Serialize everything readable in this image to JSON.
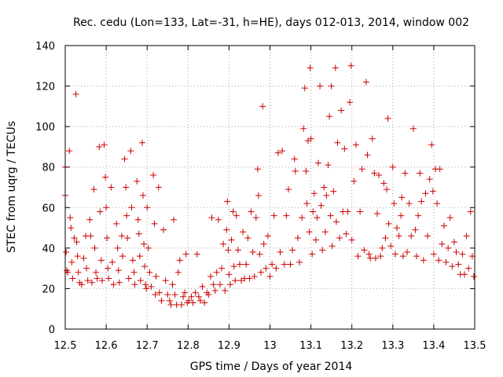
{
  "chart_data": {
    "type": "scatter",
    "title": "Rec. cedu (Lon=133, Lat=-31, h=HE), days 012-013, 2014, window 002",
    "xlabel": "GPS time / Days of year 2014",
    "ylabel": "STEC from uqrg / TECUs",
    "xlim": [
      12.5,
      13.5
    ],
    "ylim": [
      0,
      140
    ],
    "x_ticks": [
      12.5,
      12.6,
      12.7,
      12.8,
      12.9,
      13,
      13.1,
      13.2,
      13.3,
      13.4,
      13.5
    ],
    "x_tick_labels": [
      "12.5",
      "12.6",
      "12.7",
      "12.8",
      "12.9",
      "13",
      "13.1",
      "13.2",
      "13.3",
      "13.4",
      "13.5"
    ],
    "y_ticks": [
      0,
      20,
      40,
      60,
      80,
      100,
      120,
      140
    ],
    "y_tick_labels": [
      "0",
      "20",
      "40",
      "60",
      "80",
      "100",
      "120",
      "140"
    ],
    "grid": true,
    "marker": "plus",
    "color": "#cc0000",
    "series": [
      {
        "points": [
          [
            12.5,
            66
          ],
          [
            12.5,
            80
          ],
          [
            12.502,
            38
          ],
          [
            12.504,
            29
          ],
          [
            12.506,
            28
          ],
          [
            12.51,
            88
          ],
          [
            12.512,
            55
          ],
          [
            12.514,
            50
          ],
          [
            12.516,
            33
          ],
          [
            12.518,
            25
          ],
          [
            12.522,
            45
          ],
          [
            12.526,
            116
          ],
          [
            12.528,
            43
          ],
          [
            12.53,
            36
          ],
          [
            12.532,
            28
          ],
          [
            12.535,
            23
          ],
          [
            12.54,
            22
          ],
          [
            12.545,
            35
          ],
          [
            12.55,
            46
          ],
          [
            12.552,
            30
          ],
          [
            12.555,
            24
          ],
          [
            12.56,
            54
          ],
          [
            12.562,
            46
          ],
          [
            12.565,
            23
          ],
          [
            12.57,
            69
          ],
          [
            12.572,
            40
          ],
          [
            12.575,
            28
          ],
          [
            12.578,
            25
          ],
          [
            12.583,
            90
          ],
          [
            12.585,
            58
          ],
          [
            12.588,
            34
          ],
          [
            12.59,
            24
          ],
          [
            12.595,
            91
          ],
          [
            12.598,
            75
          ],
          [
            12.6,
            60
          ],
          [
            12.602,
            45
          ],
          [
            12.604,
            30
          ],
          [
            12.606,
            25
          ],
          [
            12.612,
            70
          ],
          [
            12.615,
            33
          ],
          [
            12.618,
            22
          ],
          [
            12.625,
            52
          ],
          [
            12.628,
            40
          ],
          [
            12.63,
            29
          ],
          [
            12.632,
            23
          ],
          [
            12.638,
            46
          ],
          [
            12.64,
            36
          ],
          [
            12.645,
            84
          ],
          [
            12.648,
            70
          ],
          [
            12.65,
            56
          ],
          [
            12.652,
            45
          ],
          [
            12.655,
            25
          ],
          [
            12.66,
            88
          ],
          [
            12.662,
            60
          ],
          [
            12.665,
            34
          ],
          [
            12.668,
            28
          ],
          [
            12.67,
            22
          ],
          [
            12.675,
            73
          ],
          [
            12.678,
            54
          ],
          [
            12.68,
            47
          ],
          [
            12.682,
            36
          ],
          [
            12.684,
            24
          ],
          [
            12.688,
            92
          ],
          [
            12.69,
            66
          ],
          [
            12.692,
            42
          ],
          [
            12.694,
            31
          ],
          [
            12.696,
            22
          ],
          [
            12.698,
            20
          ],
          [
            12.7,
            60
          ],
          [
            12.703,
            40
          ],
          [
            12.706,
            28
          ],
          [
            12.71,
            21
          ],
          [
            12.715,
            76
          ],
          [
            12.718,
            52
          ],
          [
            12.72,
            17
          ],
          [
            12.722,
            26
          ],
          [
            12.728,
            70
          ],
          [
            12.73,
            18
          ],
          [
            12.735,
            14
          ],
          [
            12.74,
            49
          ],
          [
            12.745,
            24
          ],
          [
            12.75,
            17
          ],
          [
            12.755,
            14
          ],
          [
            12.758,
            12
          ],
          [
            12.762,
            22
          ],
          [
            12.765,
            54
          ],
          [
            12.768,
            17
          ],
          [
            12.772,
            12
          ],
          [
            12.776,
            28
          ],
          [
            12.78,
            34
          ],
          [
            12.784,
            12
          ],
          [
            12.788,
            16
          ],
          [
            12.792,
            18
          ],
          [
            12.795,
            37
          ],
          [
            12.798,
            13
          ],
          [
            12.802,
            14
          ],
          [
            12.808,
            16
          ],
          [
            12.812,
            13
          ],
          [
            12.818,
            18
          ],
          [
            12.822,
            37
          ],
          [
            12.826,
            16
          ],
          [
            12.83,
            14
          ],
          [
            12.835,
            21
          ],
          [
            12.84,
            13
          ],
          [
            12.846,
            18
          ],
          [
            12.85,
            17
          ],
          [
            12.855,
            26
          ],
          [
            12.858,
            55
          ],
          [
            12.862,
            22
          ],
          [
            12.866,
            19
          ],
          [
            12.87,
            28
          ],
          [
            12.874,
            54
          ],
          [
            12.878,
            22
          ],
          [
            12.882,
            30
          ],
          [
            12.886,
            42
          ],
          [
            12.89,
            19
          ],
          [
            12.894,
            49
          ],
          [
            12.896,
            63
          ],
          [
            12.898,
            39
          ],
          [
            12.9,
            27
          ],
          [
            12.903,
            22
          ],
          [
            12.906,
            44
          ],
          [
            12.91,
            58
          ],
          [
            12.912,
            31
          ],
          [
            12.915,
            24
          ],
          [
            12.918,
            56
          ],
          [
            12.922,
            39
          ],
          [
            12.926,
            32
          ],
          [
            12.93,
            24
          ],
          [
            12.934,
            48
          ],
          [
            12.938,
            25
          ],
          [
            12.942,
            32
          ],
          [
            12.946,
            45
          ],
          [
            12.95,
            25
          ],
          [
            12.954,
            58
          ],
          [
            12.958,
            38
          ],
          [
            12.962,
            26
          ],
          [
            12.966,
            55
          ],
          [
            12.97,
            79
          ],
          [
            12.972,
            66
          ],
          [
            12.975,
            37
          ],
          [
            12.978,
            28
          ],
          [
            12.982,
            110
          ],
          [
            12.985,
            42
          ],
          [
            12.99,
            30
          ],
          [
            12.995,
            46
          ],
          [
            13.0,
            26
          ],
          [
            13.005,
            32
          ],
          [
            13.01,
            56
          ],
          [
            13.015,
            30
          ],
          [
            13.02,
            87
          ],
          [
            13.025,
            38
          ],
          [
            13.03,
            88
          ],
          [
            13.035,
            32
          ],
          [
            13.04,
            56
          ],
          [
            13.045,
            69
          ],
          [
            13.05,
            32
          ],
          [
            13.055,
            39
          ],
          [
            13.06,
            84
          ],
          [
            13.062,
            78
          ],
          [
            13.068,
            45
          ],
          [
            13.072,
            33
          ],
          [
            13.078,
            55
          ],
          [
            13.082,
            99
          ],
          [
            13.085,
            119
          ],
          [
            13.088,
            78
          ],
          [
            13.09,
            62
          ],
          [
            13.093,
            93
          ],
          [
            13.096,
            48
          ],
          [
            13.098,
            129
          ],
          [
            13.1,
            94
          ],
          [
            13.103,
            37
          ],
          [
            13.105,
            58
          ],
          [
            13.108,
            67
          ],
          [
            13.112,
            44
          ],
          [
            13.115,
            55
          ],
          [
            13.118,
            82
          ],
          [
            13.122,
            120
          ],
          [
            13.125,
            61
          ],
          [
            13.128,
            39
          ],
          [
            13.132,
            70
          ],
          [
            13.135,
            48
          ],
          [
            13.138,
            66
          ],
          [
            13.142,
            81
          ],
          [
            13.145,
            105
          ],
          [
            13.148,
            56
          ],
          [
            13.15,
            120
          ],
          [
            13.152,
            41
          ],
          [
            13.155,
            68
          ],
          [
            13.16,
            129
          ],
          [
            13.162,
            53
          ],
          [
            13.165,
            92
          ],
          [
            13.17,
            45
          ],
          [
            13.174,
            108
          ],
          [
            13.178,
            58
          ],
          [
            13.182,
            89
          ],
          [
            13.186,
            47
          ],
          [
            13.19,
            58
          ],
          [
            13.195,
            112
          ],
          [
            13.198,
            130
          ],
          [
            13.2,
            44
          ],
          [
            13.205,
            73
          ],
          [
            13.21,
            91
          ],
          [
            13.215,
            36
          ],
          [
            13.22,
            58
          ],
          [
            13.225,
            79
          ],
          [
            13.23,
            39
          ],
          [
            13.235,
            122
          ],
          [
            13.238,
            86
          ],
          [
            13.242,
            37
          ],
          [
            13.245,
            35
          ],
          [
            13.25,
            94
          ],
          [
            13.255,
            77
          ],
          [
            13.258,
            35
          ],
          [
            13.262,
            57
          ],
          [
            13.266,
            76
          ],
          [
            13.27,
            36
          ],
          [
            13.274,
            40
          ],
          [
            13.278,
            72
          ],
          [
            13.282,
            45
          ],
          [
            13.285,
            69
          ],
          [
            13.288,
            104
          ],
          [
            13.29,
            52
          ],
          [
            13.295,
            41
          ],
          [
            13.3,
            80
          ],
          [
            13.303,
            62
          ],
          [
            13.306,
            37
          ],
          [
            13.31,
            50
          ],
          [
            13.315,
            46
          ],
          [
            13.32,
            56
          ],
          [
            13.322,
            65
          ],
          [
            13.325,
            36
          ],
          [
            13.33,
            77
          ],
          [
            13.335,
            38
          ],
          [
            13.34,
            62
          ],
          [
            13.345,
            46
          ],
          [
            13.35,
            99
          ],
          [
            13.355,
            49
          ],
          [
            13.358,
            36
          ],
          [
            13.362,
            56
          ],
          [
            13.366,
            77
          ],
          [
            13.37,
            63
          ],
          [
            13.375,
            34
          ],
          [
            13.38,
            67
          ],
          [
            13.385,
            46
          ],
          [
            13.39,
            74
          ],
          [
            13.395,
            91
          ],
          [
            13.398,
            68
          ],
          [
            13.4,
            37
          ],
          [
            13.404,
            79
          ],
          [
            13.408,
            62
          ],
          [
            13.412,
            34
          ],
          [
            13.415,
            79
          ],
          [
            13.42,
            42
          ],
          [
            13.425,
            51
          ],
          [
            13.43,
            33
          ],
          [
            13.435,
            40
          ],
          [
            13.44,
            55
          ],
          [
            13.445,
            31
          ],
          [
            13.45,
            43
          ],
          [
            13.455,
            38
          ],
          [
            13.46,
            32
          ],
          [
            13.465,
            27
          ],
          [
            13.47,
            37
          ],
          [
            13.475,
            27
          ],
          [
            13.48,
            46
          ],
          [
            13.485,
            30
          ],
          [
            13.49,
            58
          ],
          [
            13.494,
            36
          ],
          [
            13.498,
            26
          ]
        ]
      }
    ]
  }
}
